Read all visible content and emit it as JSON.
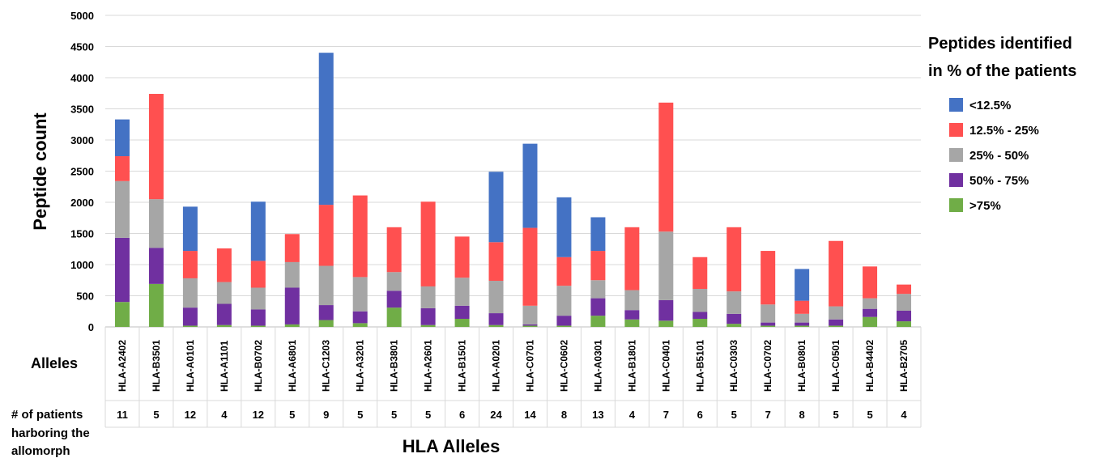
{
  "chart_data": {
    "type": "bar",
    "stacked": true,
    "title": "",
    "xlabel": "HLA Alleles",
    "ylabel": "Peptide count",
    "ylim": [
      0,
      5000
    ],
    "yticks": [
      0,
      500,
      1000,
      1500,
      2000,
      2500,
      3000,
      3500,
      4000,
      4500,
      5000
    ],
    "grid": true,
    "legend": {
      "title_line1": "Peptides identified",
      "title_line2": "in % of the patients",
      "placement": "right"
    },
    "row_labels": {
      "alleles": "Alleles",
      "patients_line1": "# of patients",
      "patients_line2": "harboring the",
      "patients_line3": "allomorph"
    },
    "categories": [
      "HLA-A2402",
      "HLA-B3501",
      "HLA-A0101",
      "HLA-A1101",
      "HLA-B0702",
      "HLA-A6801",
      "HLA-C1203",
      "HLA-A3201",
      "HLA-B3801",
      "HLA-A2601",
      "HLA-B1501",
      "HLA-A0201",
      "HLA-C0701",
      "HLA-C0602",
      "HLA-A0301",
      "HLA-B1801",
      "HLA-C0401",
      "HLA-B5101",
      "HLA-C0303",
      "HLA-C0702",
      "HLA-B0801",
      "HLA-C0501",
      "HLA-B4402",
      "HLA-B2705"
    ],
    "patients": [
      "11",
      "5",
      "12",
      "4",
      "12",
      "5",
      "9",
      "5",
      "5",
      "5",
      "6",
      "24",
      "14",
      "8",
      "13",
      "4",
      "7",
      "6",
      "5",
      "7",
      "8",
      "5",
      "5",
      "4"
    ],
    "series": [
      {
        "name": ">75%",
        "color": "#70ad47",
        "values": [
          400,
          690,
          20,
          30,
          20,
          40,
          110,
          60,
          310,
          30,
          130,
          30,
          20,
          20,
          180,
          120,
          100,
          130,
          50,
          20,
          20,
          20,
          160,
          90
        ]
      },
      {
        "name": "50% - 75%",
        "color": "#7030a0",
        "values": [
          1030,
          580,
          290,
          340,
          260,
          590,
          240,
          190,
          270,
          270,
          210,
          190,
          20,
          160,
          280,
          150,
          330,
          110,
          160,
          50,
          50,
          100,
          130,
          170
        ]
      },
      {
        "name": "25% - 50%",
        "color": "#a6a6a6",
        "values": [
          910,
          780,
          470,
          350,
          350,
          410,
          630,
          550,
          300,
          350,
          450,
          520,
          300,
          480,
          290,
          320,
          1100,
          370,
          360,
          290,
          140,
          210,
          170,
          270
        ]
      },
      {
        "name": "12.5% - 25%",
        "color": "#ff5050",
        "values": [
          400,
          1690,
          440,
          540,
          430,
          450,
          980,
          1310,
          720,
          1360,
          660,
          620,
          1250,
          460,
          470,
          1010,
          2070,
          510,
          1030,
          860,
          210,
          1050,
          510,
          150
        ]
      },
      {
        "name": "<12.5%",
        "color": "#4472c4",
        "values": [
          590,
          0,
          710,
          0,
          950,
          0,
          2440,
          0,
          0,
          0,
          0,
          1130,
          1350,
          960,
          540,
          0,
          0,
          0,
          0,
          0,
          510,
          0,
          0,
          0
        ]
      }
    ]
  }
}
